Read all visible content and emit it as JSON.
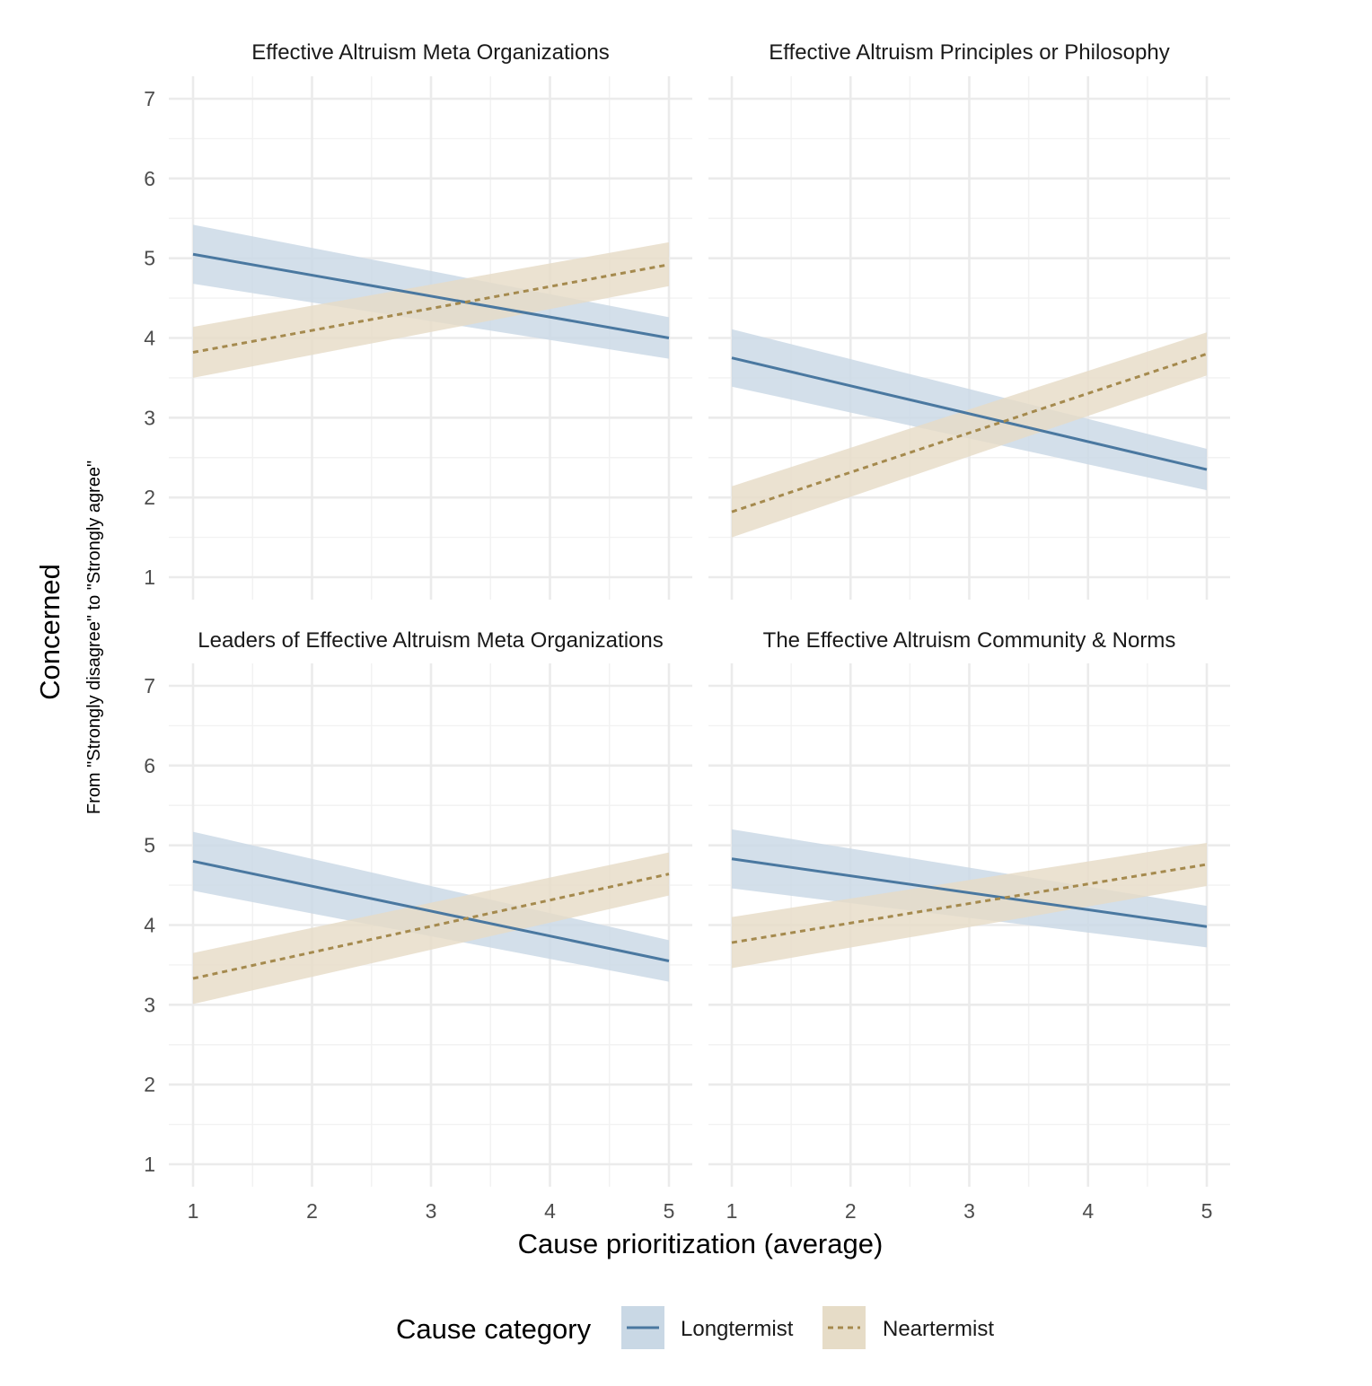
{
  "chart_data": {
    "type": "line",
    "xlabel": "Cause prioritization (average)",
    "ylabel": "Concerned",
    "ysublabel": "From \"Strongly disagree\" to \"Strongly agree\"",
    "xlim": [
      1,
      5
    ],
    "ylim": [
      1,
      7
    ],
    "xticks": [
      "1",
      "2",
      "3",
      "4",
      "5"
    ],
    "yticks": [
      "1",
      "2",
      "3",
      "4",
      "5",
      "6",
      "7"
    ],
    "grid": true,
    "legend": {
      "title": "Cause category",
      "placement": "bottom",
      "entries": [
        "Longtermist",
        "Neartermist"
      ]
    },
    "colors": {
      "Longtermist": "#4a78a0",
      "Neartermist": "#a58a4e",
      "Longtermist_band": "#c9d8e5",
      "Neartermist_band": "#e6dcc7"
    },
    "panels": [
      {
        "title": "Effective Altruism Meta Organizations",
        "series": [
          {
            "name": "Longtermist",
            "x": [
              1,
              5
            ],
            "y": [
              5.05,
              4.0
            ],
            "lower": [
              4.68,
              3.74
            ],
            "upper": [
              5.42,
              4.26
            ]
          },
          {
            "name": "Neartermist",
            "x": [
              1,
              5
            ],
            "y": [
              3.82,
              4.92
            ],
            "lower": [
              3.5,
              4.65
            ],
            "upper": [
              4.14,
              5.2
            ]
          }
        ]
      },
      {
        "title": "Effective Altruism Principles or Philosophy",
        "series": [
          {
            "name": "Longtermist",
            "x": [
              1,
              5
            ],
            "y": [
              3.75,
              2.35
            ],
            "lower": [
              3.39,
              2.09
            ],
            "upper": [
              4.11,
              2.61
            ]
          },
          {
            "name": "Neartermist",
            "x": [
              1,
              5
            ],
            "y": [
              1.82,
              3.8
            ],
            "lower": [
              1.5,
              3.53
            ],
            "upper": [
              2.14,
              4.07
            ]
          }
        ]
      },
      {
        "title": "Leaders of Effective Altruism Meta Organizations",
        "series": [
          {
            "name": "Longtermist",
            "x": [
              1,
              5
            ],
            "y": [
              4.8,
              3.55
            ],
            "lower": [
              4.43,
              3.29
            ],
            "upper": [
              5.17,
              3.81
            ]
          },
          {
            "name": "Neartermist",
            "x": [
              1,
              5
            ],
            "y": [
              3.33,
              4.64
            ],
            "lower": [
              3.01,
              4.37
            ],
            "upper": [
              3.65,
              4.91
            ]
          }
        ]
      },
      {
        "title": "The Effective Altruism Community & Norms",
        "series": [
          {
            "name": "Longtermist",
            "x": [
              1,
              5
            ],
            "y": [
              4.83,
              3.98
            ],
            "lower": [
              4.46,
              3.72
            ],
            "upper": [
              5.2,
              4.24
            ]
          },
          {
            "name": "Neartermist",
            "x": [
              1,
              5
            ],
            "y": [
              3.78,
              4.76
            ],
            "lower": [
              3.46,
              4.49
            ],
            "upper": [
              4.1,
              5.03
            ]
          }
        ]
      }
    ]
  }
}
